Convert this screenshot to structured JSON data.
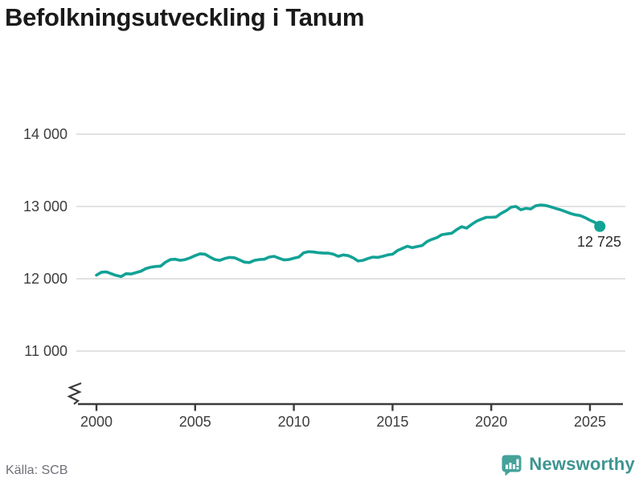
{
  "title": "Befolkningsutveckling i Tanum",
  "source": "Källa: SCB",
  "branding": {
    "name": "Newsworthy"
  },
  "colors": {
    "line": "#12A296",
    "grid": "#e2e2e2",
    "axis": "#3b3b3b",
    "tick_text": "#3d3d3d",
    "title_text": "#1a1a1a",
    "source_text": "#6f6f78",
    "brand_teal": "#3E9590",
    "annotation_text": "#2b2b2b"
  },
  "chart_data": {
    "type": "line",
    "title": "Befolkningsutveckling i Tanum",
    "xlabel": "",
    "ylabel": "",
    "grid": "horizontal",
    "legend": "none",
    "axis_break_bottom_left": true,
    "xlim": [
      1999,
      2026.8
    ],
    "ylim": [
      10800,
      14200
    ],
    "x_ticks": [
      {
        "label": "2000",
        "value": 2000
      },
      {
        "label": "2005",
        "value": 2005
      },
      {
        "label": "2010",
        "value": 2010
      },
      {
        "label": "2015",
        "value": 2015
      },
      {
        "label": "2020",
        "value": 2020
      },
      {
        "label": "2025",
        "value": 2025
      }
    ],
    "y_ticks": [
      {
        "label": "14 000",
        "value": 14000
      },
      {
        "label": "13 000",
        "value": 13000
      },
      {
        "label": "12 000",
        "value": 12000
      },
      {
        "label": "11 000",
        "value": 11000
      }
    ],
    "end_label": "12 725",
    "end_value": 12725,
    "series": [
      {
        "points": [
          [
            2000.0,
            12050
          ],
          [
            2000.25,
            12090
          ],
          [
            2000.5,
            12095
          ],
          [
            2000.75,
            12070
          ],
          [
            2001.0,
            12045
          ],
          [
            2001.25,
            12030
          ],
          [
            2001.5,
            12070
          ],
          [
            2001.75,
            12065
          ],
          [
            2002.0,
            12085
          ],
          [
            2002.25,
            12105
          ],
          [
            2002.5,
            12140
          ],
          [
            2002.75,
            12160
          ],
          [
            2003.0,
            12170
          ],
          [
            2003.25,
            12175
          ],
          [
            2003.5,
            12230
          ],
          [
            2003.75,
            12265
          ],
          [
            2004.0,
            12270
          ],
          [
            2004.25,
            12255
          ],
          [
            2004.5,
            12265
          ],
          [
            2004.75,
            12290
          ],
          [
            2005.0,
            12320
          ],
          [
            2005.25,
            12345
          ],
          [
            2005.5,
            12340
          ],
          [
            2005.75,
            12300
          ],
          [
            2006.0,
            12265
          ],
          [
            2006.25,
            12255
          ],
          [
            2006.5,
            12280
          ],
          [
            2006.75,
            12295
          ],
          [
            2007.0,
            12290
          ],
          [
            2007.25,
            12260
          ],
          [
            2007.5,
            12230
          ],
          [
            2007.75,
            12225
          ],
          [
            2008.0,
            12255
          ],
          [
            2008.25,
            12265
          ],
          [
            2008.5,
            12270
          ],
          [
            2008.75,
            12300
          ],
          [
            2009.0,
            12310
          ],
          [
            2009.25,
            12285
          ],
          [
            2009.5,
            12260
          ],
          [
            2009.75,
            12265
          ],
          [
            2010.0,
            12285
          ],
          [
            2010.25,
            12300
          ],
          [
            2010.5,
            12360
          ],
          [
            2010.75,
            12375
          ],
          [
            2011.0,
            12370
          ],
          [
            2011.25,
            12360
          ],
          [
            2011.5,
            12355
          ],
          [
            2011.75,
            12355
          ],
          [
            2012.0,
            12340
          ],
          [
            2012.25,
            12310
          ],
          [
            2012.5,
            12330
          ],
          [
            2012.75,
            12320
          ],
          [
            2013.0,
            12290
          ],
          [
            2013.25,
            12245
          ],
          [
            2013.5,
            12255
          ],
          [
            2013.75,
            12280
          ],
          [
            2014.0,
            12300
          ],
          [
            2014.25,
            12295
          ],
          [
            2014.5,
            12310
          ],
          [
            2014.75,
            12330
          ],
          [
            2015.0,
            12340
          ],
          [
            2015.25,
            12390
          ],
          [
            2015.5,
            12420
          ],
          [
            2015.75,
            12450
          ],
          [
            2016.0,
            12430
          ],
          [
            2016.25,
            12445
          ],
          [
            2016.5,
            12460
          ],
          [
            2016.75,
            12515
          ],
          [
            2017.0,
            12545
          ],
          [
            2017.25,
            12570
          ],
          [
            2017.5,
            12610
          ],
          [
            2017.75,
            12620
          ],
          [
            2018.0,
            12630
          ],
          [
            2018.25,
            12680
          ],
          [
            2018.5,
            12720
          ],
          [
            2018.75,
            12700
          ],
          [
            2019.0,
            12750
          ],
          [
            2019.25,
            12795
          ],
          [
            2019.5,
            12825
          ],
          [
            2019.75,
            12850
          ],
          [
            2020.0,
            12850
          ],
          [
            2020.25,
            12855
          ],
          [
            2020.5,
            12905
          ],
          [
            2020.75,
            12940
          ],
          [
            2021.0,
            12990
          ],
          [
            2021.25,
            13000
          ],
          [
            2021.5,
            12955
          ],
          [
            2021.75,
            12975
          ],
          [
            2022.0,
            12965
          ],
          [
            2022.25,
            13010
          ],
          [
            2022.5,
            13020
          ],
          [
            2022.75,
            13015
          ],
          [
            2023.0,
            12995
          ],
          [
            2023.25,
            12975
          ],
          [
            2023.5,
            12955
          ],
          [
            2023.75,
            12930
          ],
          [
            2024.0,
            12905
          ],
          [
            2024.25,
            12885
          ],
          [
            2024.5,
            12875
          ],
          [
            2024.75,
            12845
          ],
          [
            2025.0,
            12810
          ],
          [
            2025.25,
            12780
          ],
          [
            2025.5,
            12725
          ]
        ]
      }
    ]
  }
}
